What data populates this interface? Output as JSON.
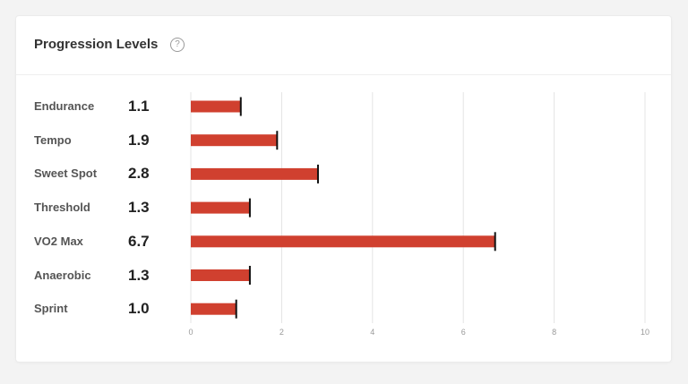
{
  "card": {
    "title": "Progression Levels",
    "help_icon": "?"
  },
  "chart_data": {
    "type": "bar",
    "orientation": "horizontal",
    "categories": [
      "Endurance",
      "Tempo",
      "Sweet Spot",
      "Threshold",
      "VO2 Max",
      "Anaerobic",
      "Sprint"
    ],
    "values": [
      1.1,
      1.9,
      2.8,
      1.3,
      6.7,
      1.3,
      1.0
    ],
    "value_labels": [
      "1.1",
      "1.9",
      "2.8",
      "1.3",
      "6.7",
      "1.3",
      "1.0"
    ],
    "xlim": [
      0,
      10
    ],
    "xticks": [
      0,
      2,
      4,
      6,
      8,
      10
    ],
    "grid": "vertical",
    "bar_color": "#d0402f",
    "marker_color": "#111111"
  }
}
